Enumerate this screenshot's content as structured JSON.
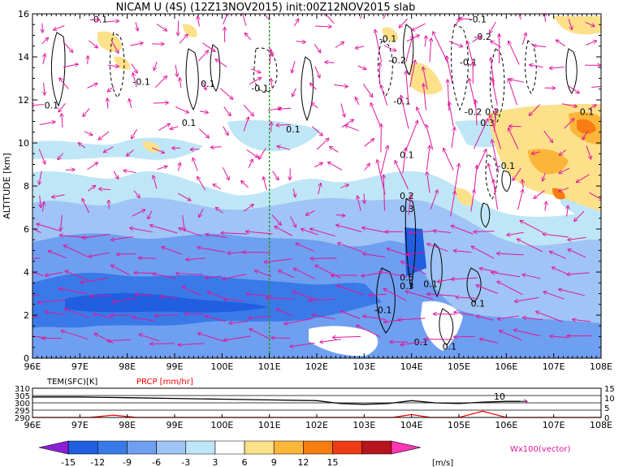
{
  "title": "NICAM U (4S) (12Z13NOV2015) init:00Z12NOV2015 slab",
  "chart_data": [
    {
      "type": "heatmap",
      "panel": "main",
      "ylabel": "ALTITUDE [km]",
      "xlim": [
        96,
        108
      ],
      "ylim": [
        0,
        16
      ],
      "x_ticks": [
        "96E",
        "97E",
        "98E",
        "99E",
        "100E",
        "101E",
        "102E",
        "103E",
        "104E",
        "105E",
        "106E",
        "107E",
        "108E"
      ],
      "y_ticks": [
        "0",
        "2",
        "4",
        "6",
        "8",
        "10",
        "12",
        "14",
        "16"
      ],
      "reference_line_lon": 101,
      "contour_labels": [
        {
          "text": "-0.1",
          "lon": 97.4,
          "z": 15.6
        },
        {
          "text": "0.1",
          "lon": 96.4,
          "z": 11.6
        },
        {
          "text": "-0.1",
          "lon": 98.3,
          "z": 12.7
        },
        {
          "text": "0.1",
          "lon": 99.3,
          "z": 10.8
        },
        {
          "text": "0.1",
          "lon": 99.7,
          "z": 12.6
        },
        {
          "text": "-0.1",
          "lon": 100.8,
          "z": 12.4
        },
        {
          "text": "0.1",
          "lon": 101.5,
          "z": 10.5
        },
        {
          "text": "-0.1",
          "lon": 103.5,
          "z": 14.7
        },
        {
          "text": "-0.2",
          "lon": 103.7,
          "z": 13.7
        },
        {
          "text": "-0.1",
          "lon": 103.8,
          "z": 11.8
        },
        {
          "text": "0.1",
          "lon": 103.9,
          "z": 9.3
        },
        {
          "text": "-0.1",
          "lon": 105.4,
          "z": 15.6
        },
        {
          "text": "-0.2",
          "lon": 105.5,
          "z": 14.8
        },
        {
          "text": "-0.1",
          "lon": 105.2,
          "z": 13.6
        },
        {
          "text": "-0.2",
          "lon": 105.3,
          "z": 11.3
        },
        {
          "text": "0.2",
          "lon": 105.7,
          "z": 11.3
        },
        {
          "text": "0.3",
          "lon": 105.6,
          "z": 10.8
        },
        {
          "text": "-0.1",
          "lon": 106.0,
          "z": 8.8
        },
        {
          "text": "0.1",
          "lon": 107.7,
          "z": 11.3
        },
        {
          "text": "0.2",
          "lon": 103.9,
          "z": 7.4
        },
        {
          "text": "0.3",
          "lon": 103.9,
          "z": 6.8
        },
        {
          "text": "0.5",
          "lon": 103.9,
          "z": 3.6
        },
        {
          "text": "0.3",
          "lon": 103.9,
          "z": 3.2
        },
        {
          "text": "0.1",
          "lon": 104.4,
          "z": 3.3
        },
        {
          "text": "-0.1",
          "lon": 103.4,
          "z": 2.1
        },
        {
          "text": "0.1",
          "lon": 105.4,
          "z": 2.4
        },
        {
          "text": "0.1",
          "lon": 104.2,
          "z": 0.6
        },
        {
          "text": "0.1",
          "lon": 104.8,
          "z": 0.4
        }
      ],
      "colorbar": {
        "ticks": [
          "-15",
          "-12",
          "-9",
          "-6",
          "-3",
          "3",
          "6",
          "9",
          "12",
          "15"
        ],
        "unit": "[m/s]",
        "colors": [
          "#8a1fd6",
          "#1f5fe0",
          "#3a7ae8",
          "#6f9ff0",
          "#9fc4f5",
          "#bfe6f7",
          "#ffffff",
          "#fde08a",
          "#fbb63a",
          "#f77d12",
          "#ee3b16",
          "#b8141e",
          "#ff36b4"
        ]
      },
      "vector_label": "Wx100(vector)"
    },
    {
      "type": "line",
      "panel": "surface",
      "xlim": [
        96,
        108
      ],
      "series": [
        {
          "name": "TEM(SFC)[K]",
          "color": "#000000",
          "x": [
            96,
            97,
            98,
            99,
            100,
            101,
            102,
            102.5,
            103,
            103.5,
            104,
            104.5,
            105,
            105.5,
            106,
            106.3
          ],
          "y": [
            304,
            304,
            303.5,
            303,
            302.5,
            302,
            301.5,
            299.5,
            299,
            299.5,
            301.5,
            300,
            299.5,
            300.5,
            301,
            301
          ]
        },
        {
          "name": "PRCP [mm/hr]",
          "color": "#ff0000",
          "x": [
            96,
            97.2,
            97.7,
            98.2,
            99,
            100,
            101,
            102,
            103,
            103.6,
            104,
            104.4,
            105,
            105.5,
            106,
            108
          ],
          "y": [
            0,
            0,
            1.2,
            0,
            0,
            0,
            0,
            0,
            0,
            0,
            1.5,
            0,
            0,
            3.2,
            0,
            0
          ]
        }
      ],
      "left_ticks": [
        "290",
        "295",
        "300",
        "305",
        "310"
      ],
      "right_ticks": [
        "0",
        "5",
        "10",
        "15"
      ],
      "inline_label": "10"
    }
  ]
}
